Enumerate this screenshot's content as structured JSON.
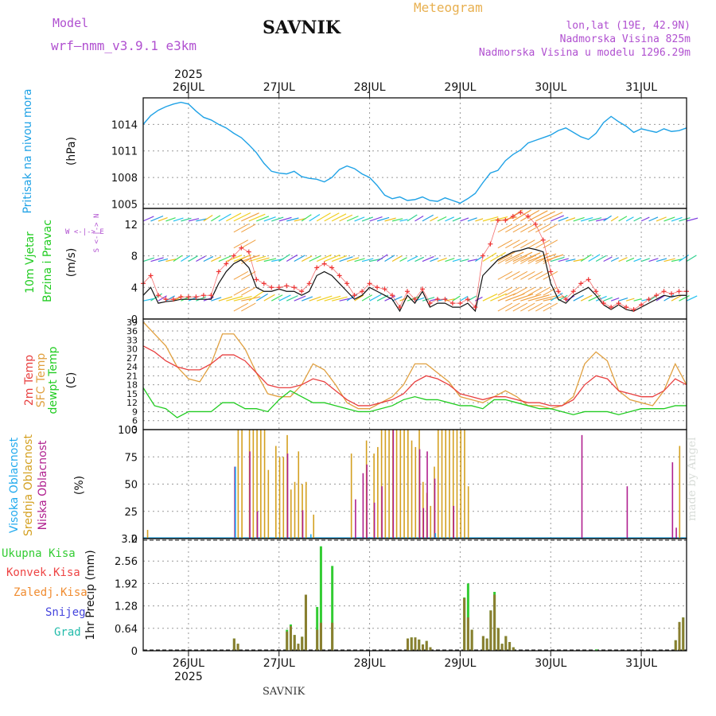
{
  "header": {
    "model_label": "Model",
    "model_name": "wrf—nmm_v3.9.1 e3km",
    "station": "SAVNIK",
    "meteogram": "Meteogram",
    "lonlat": "lon,lat (19E, 42.9N)",
    "elev": "Nadmorska Visina 825m",
    "elev_model": "Nadmorska Visina u modelu 1296.29m",
    "footer_station": "SAVNIK",
    "watermark": "made by Angel"
  },
  "colors": {
    "pressure": "#1fa2e6",
    "temp2m": "#e84040",
    "sfc": "#e0a040",
    "dewpt": "#22cc22",
    "cloud_high": "#22aaee",
    "cloud_mid": "#d4a020",
    "cloud_low": "#b0208f",
    "precip_total": "#33cc33",
    "precip_conv": "#ee4444",
    "precip_frozen": "#f08c30",
    "snow": "#4444dd",
    "graupel": "#22bbaa",
    "purple": "#b050d0",
    "orange": "#e8b050"
  },
  "time_axis": {
    "year": "2025",
    "days": [
      "26JUL",
      "27JUL",
      "28JUL",
      "29JUL",
      "30JUL",
      "31JUL"
    ]
  },
  "panels": {
    "pressure": {
      "label1": "Pritisak na nivou mora",
      "unit": "(hPa)"
    },
    "wind": {
      "label1": "10m Vjetar",
      "label2": "Brzina i Pravac",
      "unit": "(m/s)",
      "compass": "W <-|-> E",
      "compass_ns": "S <-|-> N"
    },
    "temp": {
      "label1": "2m Temp",
      "label2": "SFC Temp",
      "label3": "dewpt Temp",
      "unit": "(C)"
    },
    "cloud": {
      "label1": "Visoka Oblacnost",
      "label2": "Srednja Oblacnost",
      "label3": "Niska Oblacnost",
      "unit": "(%)"
    },
    "precip": {
      "label": "1hr Precip (mm)"
    }
  },
  "precip_legend": [
    "Ukupna Kisa",
    "Konvek.Kisa",
    "Zaledj.Kisa",
    "Snijeg",
    "Grad"
  ],
  "chart_data": {
    "type": "line",
    "x_unit": "hours from 25JUL 12UTC",
    "x_range": [
      0,
      144
    ],
    "day_ticks": [
      12,
      36,
      60,
      84,
      108,
      132
    ],
    "pressure": {
      "ylim": [
        1004.5,
        1017
      ],
      "yticks": [
        "1014",
        "1011",
        "1008",
        "1005"
      ],
      "x": [
        0,
        2,
        4,
        6,
        8,
        10,
        12,
        14,
        16,
        18,
        20,
        22,
        24,
        26,
        28,
        30,
        32,
        34,
        36,
        38,
        40,
        42,
        44,
        46,
        48,
        50,
        52,
        54,
        56,
        58,
        60,
        62,
        64,
        66,
        68,
        70,
        72,
        74,
        76,
        78,
        80,
        82,
        84,
        86,
        88,
        90,
        92,
        94,
        96,
        98,
        100,
        102,
        104,
        106,
        108,
        110,
        112,
        114,
        116,
        118,
        120,
        122,
        124,
        126,
        128,
        130,
        132,
        134,
        136,
        138,
        140,
        142,
        144
      ],
      "values": [
        1014.0,
        1015.0,
        1015.6,
        1016.0,
        1016.3,
        1016.5,
        1016.3,
        1015.5,
        1014.8,
        1014.5,
        1014.0,
        1013.6,
        1013.0,
        1012.5,
        1011.7,
        1010.8,
        1009.6,
        1008.7,
        1008.5,
        1008.4,
        1008.7,
        1008.1,
        1007.9,
        1007.8,
        1007.5,
        1008.0,
        1008.9,
        1009.3,
        1009.0,
        1008.4,
        1008.0,
        1007.1,
        1006.0,
        1005.6,
        1005.8,
        1005.4,
        1005.5,
        1005.8,
        1005.4,
        1005.3,
        1005.7,
        1005.4,
        1005.1,
        1005.6,
        1006.2,
        1007.4,
        1008.5,
        1008.8,
        1009.9,
        1010.6,
        1011.1,
        1011.9,
        1012.2,
        1012.5,
        1012.8,
        1013.3,
        1013.6,
        1013.1,
        1012.6,
        1012.3,
        1013.0,
        1014.2,
        1014.9,
        1014.3,
        1013.8,
        1013.1,
        1013.5,
        1013.3,
        1013.1,
        1013.5,
        1013.2,
        1013.3,
        1013.6
      ]
    },
    "wind": {
      "ylim": [
        0,
        14
      ],
      "yticks": [
        "12",
        "8",
        "4",
        "0"
      ],
      "x": [
        0,
        2,
        4,
        6,
        8,
        10,
        12,
        14,
        16,
        18,
        20,
        22,
        24,
        26,
        28,
        30,
        32,
        34,
        36,
        38,
        40,
        42,
        44,
        46,
        48,
        50,
        52,
        54,
        56,
        58,
        60,
        62,
        64,
        66,
        68,
        70,
        72,
        74,
        76,
        78,
        80,
        82,
        84,
        86,
        88,
        90,
        92,
        94,
        96,
        98,
        100,
        102,
        104,
        106,
        108,
        110,
        112,
        114,
        116,
        118,
        120,
        122,
        124,
        126,
        128,
        130,
        132,
        134,
        136,
        138,
        140,
        142,
        144
      ],
      "gust": [
        4.5,
        5.5,
        3.0,
        2.5,
        2.5,
        2.8,
        2.8,
        2.8,
        3.0,
        3.0,
        6.0,
        7.0,
        8.0,
        9.0,
        8.5,
        5.0,
        4.5,
        4.0,
        4.0,
        4.2,
        4.0,
        3.5,
        4.5,
        6.5,
        7.0,
        6.5,
        5.5,
        4.5,
        3.0,
        3.5,
        4.5,
        4.0,
        3.8,
        3.0,
        1.5,
        3.5,
        2.5,
        3.8,
        2.0,
        2.5,
        2.5,
        2.0,
        2.0,
        2.5,
        1.5,
        8.0,
        9.5,
        12.5,
        12.5,
        13.0,
        13.5,
        13.0,
        12.0,
        10.0,
        6.0,
        3.5,
        2.5,
        3.5,
        4.5,
        5.0,
        3.5,
        2.0,
        1.5,
        2.0,
        1.5,
        1.2,
        1.8,
        2.5,
        3.0,
        3.5,
        3.2,
        3.5,
        3.5
      ],
      "speed": [
        3.0,
        4.0,
        2.0,
        2.2,
        2.3,
        2.5,
        2.5,
        2.5,
        2.5,
        2.5,
        4.5,
        6.0,
        7.0,
        7.5,
        6.5,
        4.0,
        3.5,
        3.5,
        3.8,
        3.5,
        3.5,
        3.0,
        3.5,
        5.5,
        6.0,
        5.5,
        4.5,
        3.5,
        2.5,
        3.0,
        4.0,
        3.5,
        3.0,
        2.5,
        1.0,
        3.0,
        2.0,
        3.5,
        1.5,
        2.0,
        2.0,
        1.5,
        1.5,
        2.0,
        1.0,
        5.5,
        6.5,
        7.5,
        8.0,
        8.5,
        8.7,
        9.0,
        8.8,
        8.5,
        4.5,
        2.5,
        2.0,
        3.0,
        3.5,
        4.0,
        3.0,
        1.8,
        1.2,
        1.8,
        1.2,
        1.0,
        1.5,
        2.0,
        2.5,
        3.0,
        2.8,
        3.0,
        3.0
      ]
    },
    "temperature": {
      "ylim": [
        3,
        40
      ],
      "yticks": [
        "39",
        "36",
        "33",
        "30",
        "27",
        "24",
        "21",
        "18",
        "15",
        "12",
        "9",
        "6",
        "3"
      ],
      "x": [
        0,
        3,
        6,
        9,
        12,
        15,
        18,
        21,
        24,
        27,
        30,
        33,
        36,
        39,
        42,
        45,
        48,
        51,
        54,
        57,
        60,
        63,
        66,
        69,
        72,
        75,
        78,
        81,
        84,
        87,
        90,
        93,
        96,
        99,
        102,
        105,
        108,
        111,
        114,
        117,
        120,
        123,
        126,
        129,
        132,
        135,
        138,
        141,
        144
      ],
      "temp2m": [
        31,
        29,
        26,
        24,
        23,
        23,
        25,
        28,
        28,
        26,
        22,
        18,
        17,
        17,
        18,
        20,
        19,
        16,
        13,
        11,
        11,
        12,
        13,
        15,
        19,
        21,
        20,
        18,
        15,
        14,
        13,
        14,
        14,
        13,
        12,
        12,
        11,
        11,
        13,
        18,
        21,
        20,
        16,
        15,
        14,
        14,
        16,
        20,
        18
      ],
      "sfc": [
        39,
        35,
        31,
        24,
        20,
        19,
        25,
        35,
        35,
        30,
        22,
        15,
        14,
        14,
        18,
        25,
        23,
        18,
        12,
        10,
        10,
        12,
        14,
        18,
        25,
        25,
        22,
        19,
        14,
        13,
        12,
        14,
        16,
        14,
        11,
        11,
        10,
        11,
        14,
        25,
        29,
        26,
        16,
        13,
        12,
        11,
        16,
        25,
        18
      ],
      "dewpt": [
        17,
        11,
        10,
        7,
        9,
        9,
        9,
        12,
        12,
        10,
        10,
        9,
        13,
        16,
        14,
        12,
        12,
        11,
        10,
        9,
        9,
        10,
        11,
        13,
        14,
        13,
        13,
        12,
        11,
        11,
        10,
        13,
        13,
        12,
        11,
        10,
        10,
        9,
        8,
        9,
        9,
        9,
        8,
        9,
        10,
        10,
        10,
        11,
        11
      ]
    },
    "cloud": {
      "ylim": [
        0,
        100
      ],
      "yticks": [
        "100",
        "75",
        "50",
        "25",
        "0"
      ],
      "mid": [
        [
          1,
          8
        ],
        [
          25,
          100
        ],
        [
          26,
          100
        ],
        [
          28,
          100
        ],
        [
          29,
          100
        ],
        [
          30,
          100
        ],
        [
          31,
          100
        ],
        [
          32,
          100
        ],
        [
          33,
          63
        ],
        [
          35,
          85
        ],
        [
          36,
          75
        ],
        [
          37,
          75
        ],
        [
          38,
          95
        ],
        [
          39,
          45
        ],
        [
          40,
          52
        ],
        [
          41,
          80
        ],
        [
          42,
          50
        ],
        [
          43,
          52
        ],
        [
          45,
          22
        ],
        [
          55,
          78
        ],
        [
          59,
          90
        ],
        [
          61,
          78
        ],
        [
          62,
          84
        ],
        [
          63,
          100
        ],
        [
          64,
          100
        ],
        [
          65,
          100
        ],
        [
          66,
          100
        ],
        [
          67,
          100
        ],
        [
          68,
          100
        ],
        [
          69,
          100
        ],
        [
          70,
          100
        ],
        [
          71,
          90
        ],
        [
          72,
          84
        ],
        [
          73,
          100
        ],
        [
          74,
          52
        ],
        [
          75,
          42
        ],
        [
          76,
          30
        ],
        [
          77,
          66
        ],
        [
          78,
          100
        ],
        [
          79,
          100
        ],
        [
          80,
          100
        ],
        [
          81,
          100
        ],
        [
          82,
          100
        ],
        [
          83,
          100
        ],
        [
          84,
          100
        ],
        [
          85,
          100
        ],
        [
          86,
          48
        ],
        [
          142,
          85
        ]
      ],
      "low": [
        [
          24,
          66
        ],
        [
          28,
          80
        ],
        [
          30,
          25
        ],
        [
          38,
          78
        ],
        [
          42,
          26
        ],
        [
          56,
          36
        ],
        [
          58,
          60
        ],
        [
          59,
          68
        ],
        [
          61,
          33
        ],
        [
          63,
          48
        ],
        [
          66,
          100
        ],
        [
          73,
          82
        ],
        [
          74,
          28
        ],
        [
          75,
          80
        ],
        [
          77,
          55
        ],
        [
          82,
          30
        ],
        [
          116,
          95
        ],
        [
          128,
          48
        ],
        [
          140,
          70
        ],
        [
          141,
          10
        ]
      ],
      "high": [
        [
          24,
          66
        ],
        [
          44,
          4
        ],
        [
          77,
          5
        ]
      ]
    },
    "precip": {
      "ylim": [
        0,
        3.2
      ],
      "yticks": [
        "3.2",
        "2.56",
        "1.92",
        "1.28",
        "0.64",
        "0"
      ],
      "total": [
        [
          24,
          0.35
        ],
        [
          25,
          0.2
        ],
        [
          38,
          0.6
        ],
        [
          39,
          0.75
        ],
        [
          40,
          0.45
        ],
        [
          41,
          0.2
        ],
        [
          42,
          0.4
        ],
        [
          43,
          1.6
        ],
        [
          46,
          1.25
        ],
        [
          47,
          2.98
        ],
        [
          50,
          2.42
        ],
        [
          70,
          0.35
        ],
        [
          71,
          0.38
        ],
        [
          72,
          0.38
        ],
        [
          73,
          0.32
        ],
        [
          74,
          0.18
        ],
        [
          75,
          0.28
        ],
        [
          76,
          0.1
        ],
        [
          85,
          1.52
        ],
        [
          86,
          1.92
        ],
        [
          87,
          0.6
        ],
        [
          90,
          0.42
        ],
        [
          91,
          0.35
        ],
        [
          92,
          1.15
        ],
        [
          93,
          1.68
        ],
        [
          94,
          0.65
        ],
        [
          95,
          0.2
        ],
        [
          96,
          0.42
        ],
        [
          97,
          0.25
        ],
        [
          98,
          0.1
        ],
        [
          120,
          0.04
        ],
        [
          141,
          0.3
        ],
        [
          142,
          0.82
        ],
        [
          143,
          0.95
        ]
      ],
      "conv": [
        [
          24,
          0.35
        ],
        [
          25,
          0.2
        ],
        [
          38,
          0.55
        ],
        [
          39,
          0.7
        ],
        [
          40,
          0.45
        ],
        [
          41,
          0.2
        ],
        [
          42,
          0.4
        ],
        [
          43,
          1.6
        ],
        [
          46,
          0.6
        ],
        [
          47,
          0.8
        ],
        [
          50,
          0.8
        ],
        [
          70,
          0.35
        ],
        [
          71,
          0.38
        ],
        [
          72,
          0.38
        ],
        [
          73,
          0.32
        ],
        [
          74,
          0.18
        ],
        [
          75,
          0.28
        ],
        [
          76,
          0.1
        ],
        [
          85,
          1.5
        ],
        [
          86,
          0.95
        ],
        [
          87,
          0.6
        ],
        [
          90,
          0.42
        ],
        [
          91,
          0.35
        ],
        [
          92,
          1.15
        ],
        [
          93,
          1.6
        ],
        [
          94,
          0.65
        ],
        [
          95,
          0.2
        ],
        [
          96,
          0.42
        ],
        [
          97,
          0.25
        ],
        [
          98,
          0.1
        ],
        [
          141,
          0.3
        ],
        [
          142,
          0.82
        ],
        [
          143,
          0.95
        ]
      ]
    }
  }
}
